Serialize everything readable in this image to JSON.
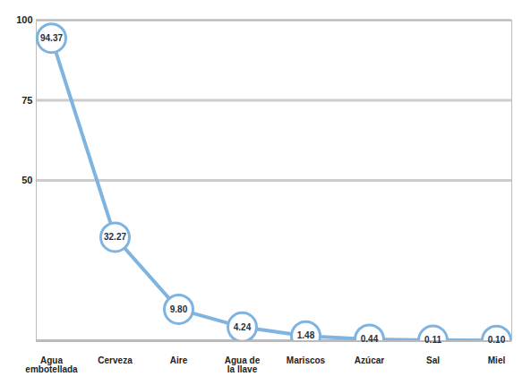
{
  "chart_data": {
    "type": "line",
    "categories": [
      "Agua embotellada",
      "Cerveza",
      "Aire",
      "Agua de la llave",
      "Mariscos",
      "Azúcar",
      "Sal",
      "Miel"
    ],
    "values": [
      94.37,
      32.27,
      9.8,
      4.24,
      1.48,
      0.44,
      0.11,
      0.1
    ],
    "value_labels": [
      "94.37",
      "32.27",
      "9.80",
      "4.24",
      "1.48",
      "0.44",
      "0.11",
      "0.10"
    ],
    "color": "#7fb3e0",
    "ylim": [
      0,
      100
    ],
    "yticks": [
      50,
      75,
      100
    ],
    "grid": true,
    "data_labels": true,
    "marker": "circle"
  }
}
